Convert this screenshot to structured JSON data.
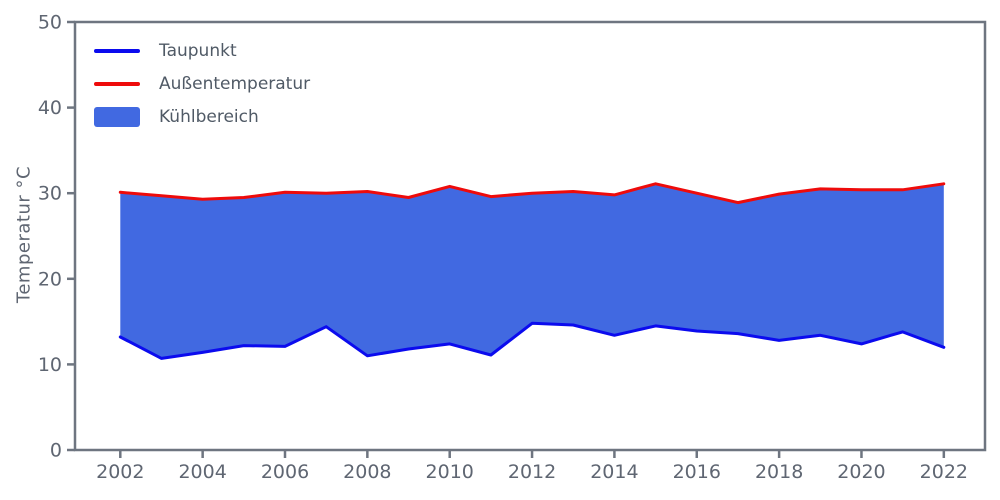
{
  "chart_data": {
    "type": "area",
    "title": "",
    "xlabel": "",
    "ylabel": "Temperatur °C",
    "x": [
      2002,
      2003,
      2004,
      2005,
      2006,
      2007,
      2008,
      2009,
      2010,
      2011,
      2012,
      2013,
      2014,
      2015,
      2016,
      2017,
      2018,
      2019,
      2020,
      2021,
      2022
    ],
    "series": [
      {
        "name": "Taupunkt",
        "color": "#0b0bee",
        "line_width": 3,
        "values": [
          13.2,
          10.7,
          11.4,
          12.2,
          12.1,
          14.4,
          11.0,
          11.8,
          12.4,
          11.1,
          14.8,
          14.6,
          13.4,
          14.5,
          13.9,
          13.6,
          12.8,
          13.4,
          12.4,
          13.8,
          12.0
        ]
      },
      {
        "name": "Außentemperatur",
        "color": "#ee0b0b",
        "line_width": 3,
        "values": [
          30.1,
          29.7,
          29.3,
          29.5,
          30.1,
          30.0,
          30.2,
          29.5,
          30.8,
          29.6,
          30.0,
          30.2,
          29.8,
          31.1,
          30.0,
          28.9,
          29.9,
          30.5,
          30.4,
          30.4,
          31.1
        ]
      }
    ],
    "fill_between": {
      "name": "Kühlbereich",
      "color": "#4169e1",
      "lower": "Taupunkt",
      "upper": "Außentemperatur"
    },
    "xlim": [
      2000.9,
      2023.0
    ],
    "ylim": [
      0,
      50
    ],
    "xticks": [
      2002,
      2004,
      2006,
      2008,
      2010,
      2012,
      2014,
      2016,
      2018,
      2020,
      2022
    ],
    "yticks": [
      0,
      10,
      20,
      30,
      40,
      50
    ],
    "grid": false,
    "legend_position": "upper-left"
  },
  "legend": {
    "items": [
      {
        "label": "Taupunkt",
        "swatch": "line",
        "color": "#0b0bee"
      },
      {
        "label": "Außentemperatur",
        "swatch": "line",
        "color": "#ee0b0b"
      },
      {
        "label": "Kühlbereich",
        "swatch": "patch",
        "color": "#4169e1"
      }
    ]
  },
  "colors": {
    "spine": "#6e7580",
    "tick_text": "#5f6672",
    "axis_label_text": "#5f6672",
    "legend_text": "#505a66",
    "background": "#ffffff"
  }
}
